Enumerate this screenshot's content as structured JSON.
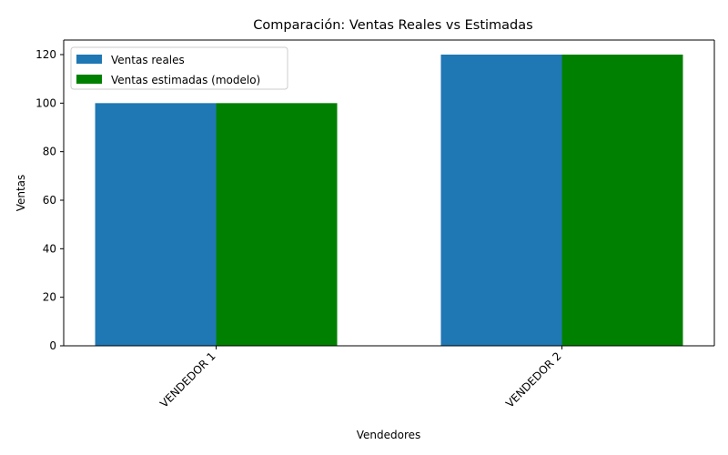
{
  "chart_data": {
    "type": "bar",
    "title": "Comparación: Ventas Reales vs Estimadas",
    "xlabel": "Vendedores",
    "ylabel": "Ventas",
    "categories": [
      "VENDEDOR 1",
      "VENDEDOR 2"
    ],
    "series": [
      {
        "name": "Ventas reales",
        "values": [
          100,
          120
        ],
        "color": "#1f77b4"
      },
      {
        "name": "Ventas estimadas (modelo)",
        "values": [
          100,
          120
        ],
        "color": "#008000"
      }
    ],
    "ylim": [
      0,
      126
    ],
    "yticks": [
      0,
      20,
      40,
      60,
      80,
      100,
      120
    ],
    "grid": false,
    "legend_position": "upper-left",
    "xtick_rotation": 45
  }
}
